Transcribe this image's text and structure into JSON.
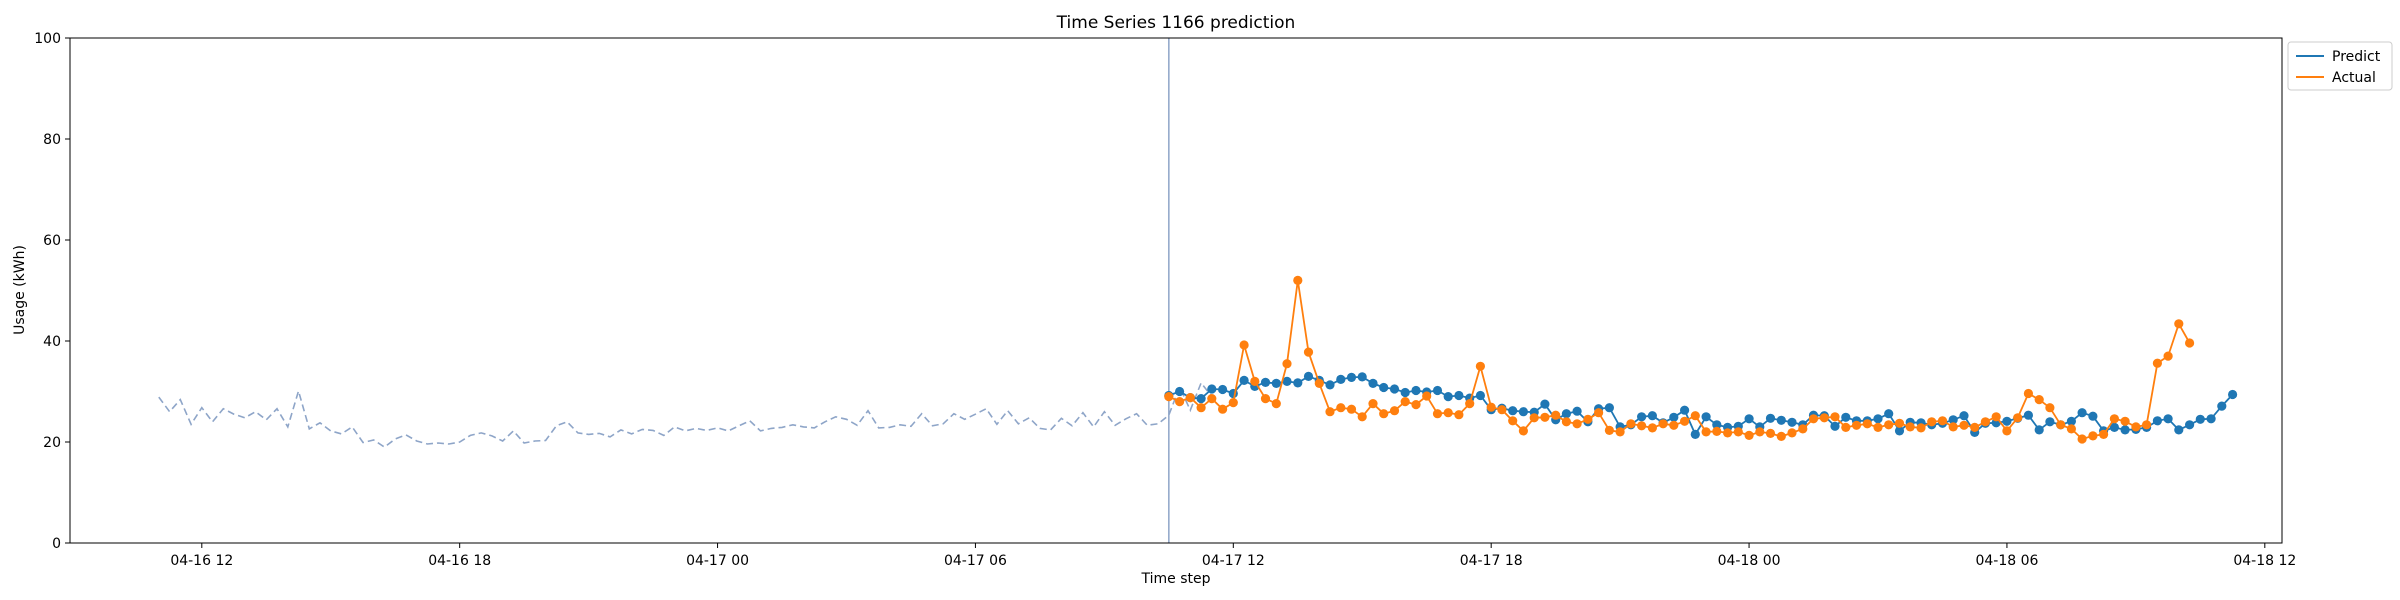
{
  "chart_data": {
    "type": "line",
    "title": "Time Series 1166 prediction",
    "xlabel": "Time step",
    "ylabel": "Usage (kWh)",
    "ylim": [
      0,
      100
    ],
    "yticks": [
      0,
      20,
      40,
      60,
      80,
      100
    ],
    "xlim": [
      "2024-04-16 08:56",
      "2024-04-18 12:24"
    ],
    "xticks": [
      {
        "t": "2024-04-16 12:00",
        "label": "04-16 12"
      },
      {
        "t": "2024-04-16 18:00",
        "label": "04-16 18"
      },
      {
        "t": "2024-04-17 00:00",
        "label": "04-17 00"
      },
      {
        "t": "2024-04-17 06:00",
        "label": "04-17 06"
      },
      {
        "t": "2024-04-17 12:00",
        "label": "04-17 12"
      },
      {
        "t": "2024-04-17 18:00",
        "label": "04-17 18"
      },
      {
        "t": "2024-04-18 00:00",
        "label": "04-18 00"
      },
      {
        "t": "2024-04-18 06:00",
        "label": "04-18 06"
      },
      {
        "t": "2024-04-18 12:00",
        "label": "04-18 12"
      }
    ],
    "divider_time": "2024-04-17 10:30",
    "grid": false,
    "legend_position": "upper-right-outside",
    "series": [
      {
        "name": "",
        "role": "history",
        "style": "dashed",
        "color": "#8ea5c8",
        "start": "2024-04-16 11:00",
        "step_minutes": 15,
        "values": [
          28.9,
          26.0,
          28.4,
          23.5,
          26.8,
          24.0,
          26.6,
          25.5,
          24.8,
          26.0,
          24.4,
          26.6,
          23.0,
          30.1,
          22.6,
          23.8,
          22.2,
          21.6,
          23.0,
          19.9,
          20.4,
          19.0,
          20.6,
          21.4,
          20.2,
          19.6,
          19.8,
          19.6,
          20.0,
          21.3,
          21.8,
          21.2,
          20.2,
          22.2,
          19.8,
          20.2,
          20.3,
          23.2,
          24.0,
          21.8,
          21.5,
          21.7,
          21.0,
          22.4,
          21.6,
          22.5,
          22.3,
          21.3,
          23.0,
          22.2,
          22.7,
          22.3,
          22.8,
          22.2,
          23.2,
          24.2,
          22.2,
          22.7,
          22.9,
          23.4,
          23.0,
          22.8,
          24.0,
          25.0,
          24.5,
          23.3,
          26.2,
          22.8,
          22.9,
          23.4,
          23.1,
          25.6,
          23.2,
          23.6,
          25.6,
          24.5,
          25.5,
          26.6,
          23.5,
          26.2,
          23.6,
          24.8,
          22.7,
          22.4,
          24.7,
          23.2,
          25.8,
          23.0,
          26.0,
          23.3,
          24.6,
          25.6,
          23.3,
          23.6,
          25.3,
          30.9,
          26.3,
          31.7,
          29.0
        ]
      },
      {
        "name": "Predict",
        "role": "prediction",
        "color": "#1f77b4",
        "start": "2024-04-17 10:30",
        "step_minutes": 15,
        "values": [
          29.2,
          30.0,
          28.8,
          28.6,
          30.5,
          30.4,
          29.6,
          32.2,
          31.0,
          31.8,
          31.6,
          32.0,
          31.7,
          33.0,
          32.2,
          31.3,
          32.4,
          32.8,
          32.9,
          31.6,
          30.8,
          30.5,
          29.8,
          30.2,
          29.9,
          30.2,
          29.0,
          29.2,
          28.7,
          29.2,
          26.4,
          26.7,
          26.2,
          26.0,
          25.9,
          27.5,
          24.4,
          25.6,
          26.1,
          24.0,
          26.6,
          26.8,
          23.0,
          23.4,
          25.0,
          25.2,
          23.8,
          24.9,
          26.3,
          21.5,
          25.0,
          23.4,
          22.9,
          23.1,
          24.6,
          23.0,
          24.7,
          24.3,
          23.9,
          23.4,
          25.3,
          25.2,
          23.1,
          24.9,
          24.2,
          24.2,
          24.6,
          25.6,
          22.2,
          23.9,
          23.8,
          23.4,
          23.7,
          24.4,
          25.2,
          21.9,
          23.7,
          23.8,
          24.1,
          24.7,
          25.3,
          22.4,
          24.0,
          23.4,
          24.1,
          25.8,
          25.1,
          22.2,
          22.9,
          22.4,
          22.5,
          22.9,
          24.2,
          24.6,
          22.4,
          23.4,
          24.5,
          24.6,
          27.1,
          29.4
        ]
      },
      {
        "name": "Actual",
        "role": "actual",
        "color": "#ff7f0e",
        "start": "2024-04-17 10:30",
        "step_minutes": 15,
        "values": [
          29.0,
          28.0,
          28.8,
          26.8,
          28.6,
          26.5,
          27.8,
          39.2,
          32.0,
          28.6,
          27.6,
          35.5,
          52.0,
          37.8,
          31.6,
          26.0,
          26.8,
          26.5,
          25.0,
          27.6,
          25.6,
          26.2,
          28.0,
          27.4,
          29.1,
          25.6,
          25.8,
          25.4,
          27.6,
          35.0,
          26.9,
          26.4,
          24.2,
          22.2,
          24.8,
          24.9,
          25.3,
          24.0,
          23.6,
          24.5,
          25.8,
          22.3,
          22.0,
          23.6,
          23.2,
          22.8,
          23.6,
          23.3,
          24.1,
          25.2,
          22.0,
          22.1,
          21.8,
          22.0,
          21.3,
          22.0,
          21.7,
          21.1,
          21.8,
          22.6,
          24.6,
          24.8,
          25.0,
          22.9,
          23.3,
          23.6,
          22.9,
          23.4,
          23.7,
          23.0,
          22.8,
          24.0,
          24.2,
          23.0,
          23.3,
          22.9,
          24.0,
          25.0,
          22.2,
          24.8,
          29.6,
          28.4,
          26.8,
          23.4,
          22.6,
          20.6,
          21.2,
          21.5,
          24.6,
          24.1,
          23.0,
          23.4,
          35.6,
          37.0,
          43.4,
          39.6
        ]
      }
    ]
  }
}
